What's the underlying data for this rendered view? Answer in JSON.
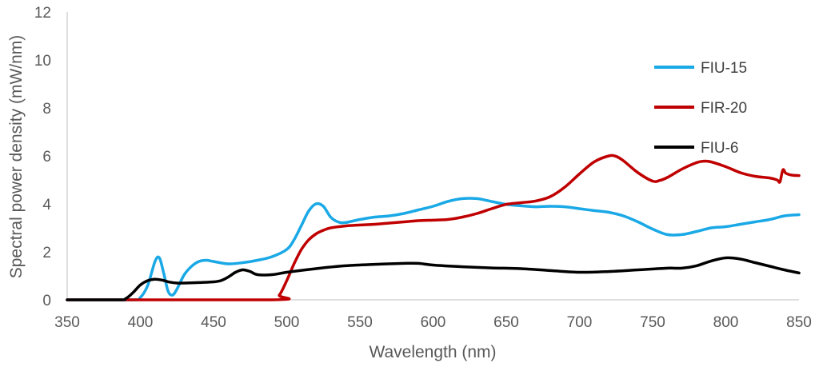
{
  "chart_data": {
    "type": "line",
    "title": "",
    "xlabel": "Wavelength (nm)",
    "ylabel": "Spectral power density (mW/nm)",
    "xlim": [
      350,
      850
    ],
    "ylim": [
      0,
      12
    ],
    "xticks": [
      350,
      400,
      450,
      500,
      550,
      600,
      650,
      700,
      750,
      800,
      850
    ],
    "yticks": [
      0,
      2,
      4,
      6,
      8,
      10,
      12
    ],
    "grid": false,
    "legend_position": "right",
    "series": [
      {
        "name": "FIU-15",
        "color": "#1aa9e6",
        "x": [
          350,
          395,
          400,
          405,
          410,
          413,
          416,
          419,
          422,
          425,
          430,
          435,
          440,
          445,
          450,
          460,
          470,
          480,
          490,
          500,
          505,
          510,
          515,
          520,
          525,
          530,
          535,
          540,
          550,
          560,
          570,
          580,
          590,
          600,
          610,
          620,
          630,
          640,
          650,
          660,
          670,
          680,
          690,
          700,
          710,
          720,
          730,
          740,
          750,
          760,
          770,
          780,
          790,
          800,
          810,
          820,
          830,
          840,
          850
        ],
        "y": [
          0,
          0,
          0.1,
          0.6,
          1.6,
          1.75,
          1.1,
          0.35,
          0.2,
          0.45,
          1.05,
          1.4,
          1.6,
          1.65,
          1.6,
          1.5,
          1.55,
          1.65,
          1.8,
          2.1,
          2.5,
          3.1,
          3.7,
          4.0,
          3.9,
          3.45,
          3.25,
          3.22,
          3.35,
          3.45,
          3.5,
          3.6,
          3.75,
          3.9,
          4.1,
          4.22,
          4.22,
          4.1,
          3.98,
          3.92,
          3.88,
          3.9,
          3.88,
          3.8,
          3.72,
          3.65,
          3.5,
          3.25,
          2.95,
          2.72,
          2.72,
          2.85,
          3.0,
          3.05,
          3.15,
          3.25,
          3.35,
          3.5,
          3.55
        ]
      },
      {
        "name": "FIR-20",
        "color": "#c00000",
        "x": [
          350,
          490,
          495,
          500,
          505,
          510,
          515,
          520,
          525,
          530,
          540,
          550,
          560,
          570,
          580,
          590,
          600,
          610,
          620,
          630,
          640,
          650,
          660,
          670,
          680,
          690,
          700,
          710,
          720,
          725,
          730,
          740,
          750,
          755,
          760,
          770,
          780,
          785,
          790,
          800,
          810,
          820,
          830,
          835,
          837,
          839,
          841,
          845,
          850
        ],
        "y": [
          0,
          0,
          0.2,
          0.8,
          1.5,
          2.1,
          2.5,
          2.75,
          2.9,
          3.0,
          3.08,
          3.12,
          3.15,
          3.2,
          3.25,
          3.3,
          3.32,
          3.35,
          3.45,
          3.6,
          3.8,
          3.98,
          4.05,
          4.12,
          4.3,
          4.7,
          5.25,
          5.75,
          6.0,
          5.98,
          5.8,
          5.3,
          4.95,
          4.98,
          5.1,
          5.45,
          5.72,
          5.78,
          5.75,
          5.55,
          5.3,
          5.15,
          5.08,
          5.0,
          4.92,
          5.42,
          5.28,
          5.2,
          5.18
        ]
      },
      {
        "name": "FIU-6",
        "color": "#000000",
        "x": [
          350,
          385,
          390,
          395,
          400,
          405,
          410,
          415,
          420,
          425,
          430,
          440,
          450,
          455,
          460,
          465,
          470,
          475,
          480,
          490,
          500,
          520,
          540,
          560,
          580,
          590,
          600,
          620,
          640,
          660,
          680,
          700,
          720,
          740,
          760,
          770,
          780,
          790,
          800,
          810,
          820,
          830,
          840,
          850
        ],
        "y": [
          0,
          0,
          0.05,
          0.3,
          0.62,
          0.8,
          0.86,
          0.82,
          0.74,
          0.7,
          0.7,
          0.72,
          0.75,
          0.8,
          0.95,
          1.15,
          1.25,
          1.18,
          1.05,
          1.05,
          1.15,
          1.3,
          1.42,
          1.48,
          1.52,
          1.52,
          1.45,
          1.38,
          1.33,
          1.3,
          1.22,
          1.15,
          1.18,
          1.25,
          1.32,
          1.32,
          1.42,
          1.62,
          1.75,
          1.7,
          1.55,
          1.4,
          1.25,
          1.12
        ]
      }
    ]
  }
}
